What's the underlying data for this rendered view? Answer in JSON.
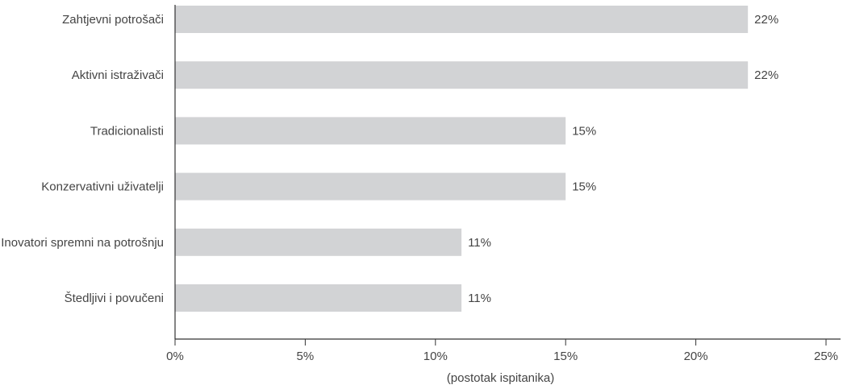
{
  "chart_data": {
    "type": "bar",
    "orientation": "horizontal",
    "categories": [
      "Zahtjevni potrošači",
      "Aktivni istraživači",
      "Tradicionalisti",
      "Konzervativni uživatelji",
      "Inovatori spremni na potrošnju",
      "Štedljivi i povučeni"
    ],
    "values": [
      22,
      22,
      15,
      15,
      11,
      11
    ],
    "value_labels": [
      "22%",
      "22%",
      "15%",
      "15%",
      "11%",
      "11%"
    ],
    "xlabel": "(postotak ispitanika)",
    "xlim": [
      0,
      25
    ],
    "xticks": [
      0,
      5,
      10,
      15,
      20,
      25
    ],
    "xtick_labels": [
      "0%",
      "5%",
      "10%",
      "15%",
      "20%",
      "25%"
    ],
    "grid": false,
    "colors": {
      "bar": "#d2d3d5",
      "axis": "#333333",
      "text": "#444444"
    }
  }
}
